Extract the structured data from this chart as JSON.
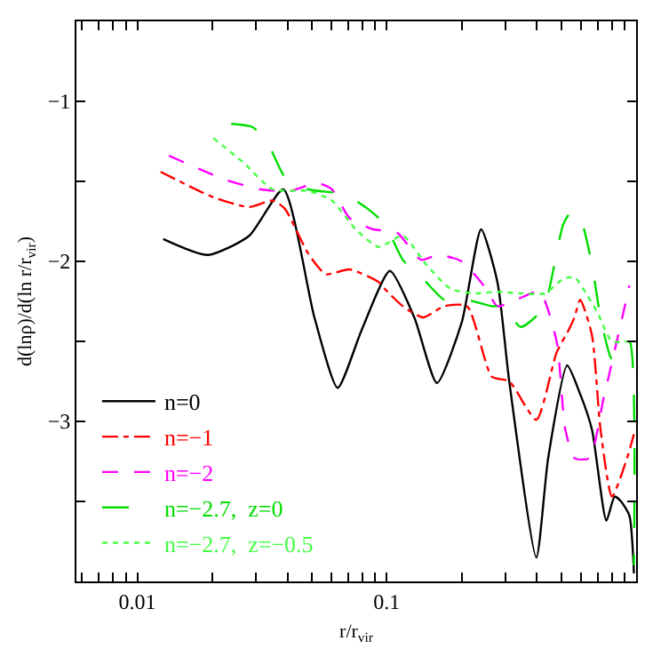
{
  "chart_data": {
    "type": "line",
    "xlabel": "r/r$_{vir}$",
    "ylabel": "d(lnρ)/d(ln r/r$_{vir}$)",
    "log": "x",
    "xlim": [
      0.0057,
      1
    ],
    "ylim": [
      -4,
      -0.5
    ],
    "xticks": [
      {
        "value": 0.006,
        "label": null
      },
      {
        "value": 0.007,
        "label": null
      },
      {
        "value": 0.008,
        "label": null
      },
      {
        "value": 0.009,
        "label": null
      },
      {
        "value": 0.01,
        "label": "0.01"
      },
      {
        "value": 0.02,
        "label": null
      },
      {
        "value": 0.03,
        "label": null
      },
      {
        "value": 0.04,
        "label": null
      },
      {
        "value": 0.05,
        "label": null
      },
      {
        "value": 0.06,
        "label": null
      },
      {
        "value": 0.07,
        "label": null
      },
      {
        "value": 0.08,
        "label": null
      },
      {
        "value": 0.09,
        "label": null
      },
      {
        "value": 0.1,
        "label": "0.1"
      },
      {
        "value": 0.2,
        "label": null
      },
      {
        "value": 0.3,
        "label": null
      },
      {
        "value": 0.4,
        "label": null
      },
      {
        "value": 0.5,
        "label": null
      },
      {
        "value": 0.6,
        "label": null
      },
      {
        "value": 0.7,
        "label": null
      },
      {
        "value": 0.8,
        "label": null
      },
      {
        "value": 0.9,
        "label": null
      }
    ],
    "yticks": [
      {
        "value": -3.5,
        "label": null
      },
      -3,
      {
        "value": -2.5,
        "label": null
      },
      -2,
      {
        "value": -1.5,
        "label": null
      },
      -1
    ],
    "grid": false,
    "legend": "bottom left",
    "marker": "none",
    "series": [
      {
        "name": "n=0",
        "color": "#000000",
        "line_style": "solid",
        "x": [
          0.0127,
          0.0192,
          0.0281,
          0.0385,
          0.0513,
          0.0636,
          0.0793,
          0.103,
          0.129,
          0.159,
          0.2,
          0.239,
          0.278,
          0.31,
          0.398,
          0.444,
          0.529,
          0.597,
          0.665,
          0.76,
          0.82,
          0.87,
          0.94,
          0.98
        ],
        "values": [
          -1.86,
          -1.96,
          -1.84,
          -1.55,
          -2.35,
          -2.79,
          -2.43,
          -2.06,
          -2.35,
          -2.76,
          -2.38,
          -1.8,
          -2.13,
          -2.75,
          -3.85,
          -3.23,
          -2.65,
          -2.83,
          -3.05,
          -3.62,
          -3.47,
          -3.5,
          -3.59,
          -3.95
        ]
      },
      {
        "name": "n=−1",
        "color": "#ff0000",
        "line_style": "dashdot",
        "x": [
          0.0124,
          0.0202,
          0.0281,
          0.0349,
          0.039,
          0.0484,
          0.057,
          0.071,
          0.093,
          0.098,
          0.116,
          0.14,
          0.17,
          0.21,
          0.264,
          0.31,
          0.398,
          0.48,
          0.54,
          0.566,
          0.597,
          0.665,
          0.72,
          0.8,
          0.92,
          0.98
        ],
        "values": [
          -1.44,
          -1.6,
          -1.66,
          -1.62,
          -1.67,
          -1.95,
          -2.08,
          -2.05,
          -2.13,
          -2.17,
          -2.28,
          -2.35,
          -2.28,
          -2.28,
          -2.72,
          -2.75,
          -2.99,
          -2.57,
          -2.42,
          -2.35,
          -2.24,
          -2.46,
          -3.05,
          -3.47,
          -3.23,
          -3.08
        ]
      },
      {
        "name": "n=−2",
        "color": "#ff00ff",
        "line_style": "dashed",
        "x": [
          0.0134,
          0.0226,
          0.0313,
          0.0412,
          0.0526,
          0.0603,
          0.071,
          0.0884,
          0.11,
          0.137,
          0.161,
          0.2,
          0.25,
          0.278,
          0.33,
          0.41,
          0.48,
          0.52,
          0.567,
          0.65,
          0.74,
          0.88,
          0.94
        ],
        "values": [
          -1.34,
          -1.49,
          -1.55,
          -1.56,
          -1.51,
          -1.55,
          -1.73,
          -1.8,
          -1.82,
          -1.99,
          -1.96,
          -2.0,
          -2.17,
          -2.28,
          -2.24,
          -2.19,
          -2.5,
          -3.05,
          -3.23,
          -3.23,
          -2.86,
          -2.35,
          -2.15
        ]
      },
      {
        "name": "n=−2.7,  z=0",
        "color": "#00dd00",
        "line_style": "longdash",
        "x": [
          0.0238,
          0.0289,
          0.0331,
          0.039,
          0.0484,
          0.0672,
          0.0837,
          0.0985,
          0.116,
          0.144,
          0.17,
          0.21,
          0.264,
          0.292,
          0.345,
          0.41,
          0.444,
          0.51,
          0.55,
          0.597,
          0.665,
          0.72,
          0.8,
          0.87,
          0.94,
          0.98
        ],
        "values": [
          -1.14,
          -1.16,
          -1.25,
          -1.47,
          -1.55,
          -1.58,
          -1.67,
          -1.77,
          -1.99,
          -2.13,
          -2.24,
          -2.24,
          -2.28,
          -2.28,
          -2.41,
          -2.32,
          -2.2,
          -1.77,
          -1.69,
          -1.73,
          -2.02,
          -2.35,
          -2.61,
          -2.53,
          -2.5,
          -3.9
        ]
      },
      {
        "name": "n=−2.7,  z=−0.5",
        "color": "#44ff44",
        "line_style": "dotted",
        "x": [
          0.0202,
          0.0265,
          0.0349,
          0.0484,
          0.0603,
          0.0752,
          0.093,
          0.116,
          0.144,
          0.18,
          0.224,
          0.278,
          0.345,
          0.43,
          0.51,
          0.567,
          0.63,
          0.7,
          0.8,
          0.92
        ],
        "values": [
          -1.23,
          -1.38,
          -1.55,
          -1.56,
          -1.62,
          -1.8,
          -1.91,
          -1.84,
          -2.02,
          -2.17,
          -2.2,
          -2.19,
          -2.2,
          -2.2,
          -2.11,
          -2.1,
          -2.2,
          -2.32,
          -2.5,
          -2.5
        ]
      }
    ]
  }
}
